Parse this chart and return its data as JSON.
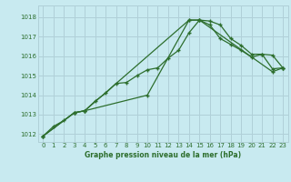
{
  "title": "Graphe pression niveau de la mer (hPa)",
  "bg_color": "#c8eaf0",
  "grid_color": "#b0d0d8",
  "line_color": "#2d6e2d",
  "xlim": [
    -0.5,
    23.5
  ],
  "ylim": [
    1011.6,
    1018.6
  ],
  "yticks": [
    1012,
    1013,
    1014,
    1015,
    1016,
    1017,
    1018
  ],
  "xticks": [
    0,
    1,
    2,
    3,
    4,
    5,
    6,
    7,
    8,
    9,
    10,
    11,
    12,
    13,
    14,
    15,
    16,
    17,
    18,
    19,
    20,
    21,
    22,
    23
  ],
  "line1_x": [
    0,
    1,
    2,
    3,
    4,
    5,
    6,
    7,
    8,
    9,
    10,
    11,
    12,
    13,
    14,
    15,
    16,
    17,
    18,
    19,
    20,
    21,
    22,
    23
  ],
  "line1_y": [
    1011.9,
    1012.4,
    1012.7,
    1013.1,
    1013.2,
    1013.7,
    1014.1,
    1014.6,
    1014.65,
    1015.0,
    1015.3,
    1015.4,
    1015.9,
    1016.3,
    1017.2,
    1017.85,
    1017.8,
    1017.6,
    1016.9,
    1016.55,
    1016.1,
    1016.1,
    1015.35,
    1015.4
  ],
  "line2_x": [
    0,
    3,
    4,
    10,
    14,
    15,
    16,
    17,
    18,
    19,
    20,
    21,
    22,
    23
  ],
  "line2_y": [
    1011.9,
    1013.1,
    1013.2,
    1014.0,
    1017.85,
    1017.85,
    1017.6,
    1016.9,
    1016.6,
    1016.3,
    1015.95,
    1016.1,
    1016.05,
    1015.4
  ],
  "line3_x": [
    0,
    3,
    4,
    14,
    15,
    22,
    23
  ],
  "line3_y": [
    1011.9,
    1013.1,
    1013.2,
    1017.85,
    1017.85,
    1015.2,
    1015.4
  ]
}
